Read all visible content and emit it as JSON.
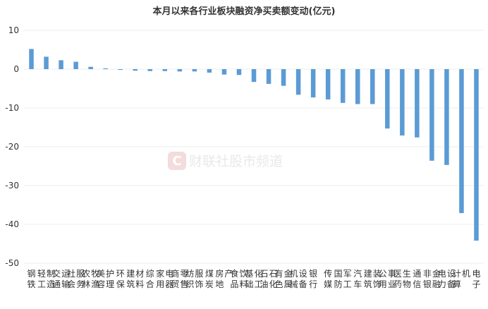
{
  "chart_data": {
    "type": "bar",
    "title": "本月以来各行业板块融资净买卖额变动(亿元)",
    "ylim": [
      -50,
      10
    ],
    "yticks": [
      10,
      0,
      -10,
      -20,
      -30,
      -40,
      -50
    ],
    "grid": true,
    "colors": {
      "bar": "#5b9bd5",
      "grid": "#ececec",
      "text": "#333333"
    },
    "categories": [
      "钢铁",
      "轻工制造",
      "交通运输",
      "社会服务",
      "农林牧渔",
      "美容护理",
      "环保",
      "建筑材料",
      "综合",
      "家用电器",
      "商贸零售",
      "纺织服饰",
      "煤炭",
      "房地产",
      "食品饮料",
      "基础化工",
      "石油石化",
      "有色金属",
      "机械设备",
      "银行",
      "传媒",
      "国防军工",
      "汽车",
      "建筑装饰",
      "公用事业",
      "医药生物",
      "通信",
      "非银金融",
      "电力设备",
      "计算机",
      "电子"
    ],
    "values": [
      5.2,
      3.2,
      2.3,
      1.9,
      0.6,
      0.2,
      -0.2,
      -0.4,
      -0.5,
      -0.5,
      -0.6,
      -0.6,
      -0.9,
      -1.4,
      -1.5,
      -3.3,
      -3.8,
      -4.3,
      -6.6,
      -7.3,
      -7.8,
      -8.7,
      -9.0,
      -9.0,
      -15.3,
      -17.1,
      -17.6,
      -23.6,
      -24.7,
      -37.1,
      -44.2
    ]
  },
  "watermark": {
    "icon_letter": "C",
    "text": "财联社股市频道"
  }
}
